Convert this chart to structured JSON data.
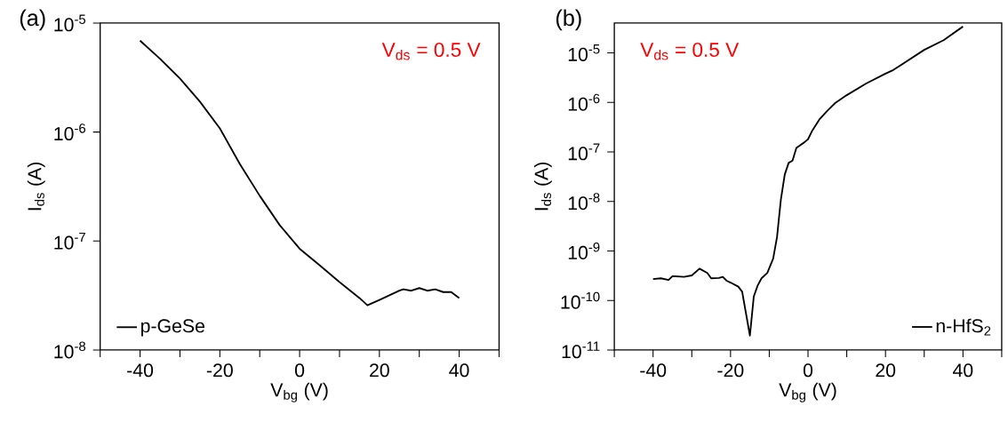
{
  "chart_data": [
    {
      "type": "line",
      "title": "(a)",
      "xlabel": "V$_{bg}$ (V)",
      "ylabel": "I$_{ds}$ (A)",
      "annotations": [
        "V$_{ds}$ = 0.5 V"
      ],
      "log": "y",
      "legend": "bottom left",
      "marker": "none",
      "line_style": "solid",
      "xlim": [
        -50,
        50
      ],
      "ylim": [
        1e-08,
        1e-05
      ],
      "xticks": [
        {
          "value": -50,
          "label": null
        },
        -40,
        {
          "value": -30,
          "label": null
        },
        -20,
        {
          "value": -10,
          "label": null
        },
        0,
        {
          "value": 10,
          "label": null
        },
        20,
        {
          "value": 30,
          "label": null
        },
        40,
        {
          "value": 50,
          "label": null
        }
      ],
      "yticks": [
        {
          "value": 1e-08,
          "label": "10$^{-8}$"
        },
        {
          "value": 1e-07,
          "label": "10$^{-7}$"
        },
        {
          "value": 1e-06,
          "label": "10$^{-6}$"
        },
        {
          "value": 1e-05,
          "label": "10$^{-5}$"
        }
      ],
      "series": [
        {
          "name": "p-GeSe",
          "color": "#000000",
          "x": [
            -40,
            -35,
            -30,
            -25,
            -20,
            -15,
            -10,
            -5,
            0,
            5,
            10,
            15,
            17,
            20,
            25,
            26,
            28,
            30,
            32,
            34,
            36,
            38,
            40
          ],
          "values": [
            6.9e-06,
            4.7e-06,
            3.1e-06,
            1.9e-06,
            1.08e-06,
            5.1e-07,
            2.6e-07,
            1.4e-07,
            8.5e-08,
            6e-08,
            4.2e-08,
            3e-08,
            2.57e-08,
            2.88e-08,
            3.5e-08,
            3.6e-08,
            3.5e-08,
            3.7e-08,
            3.5e-08,
            3.6e-08,
            3.4e-08,
            3.4e-08,
            3e-08
          ]
        }
      ]
    },
    {
      "type": "line",
      "title": "(b)",
      "xlabel": "V$_{bg}$ (V)",
      "ylabel": "I$_{ds}$ (A)",
      "annotations": [
        "V$_{ds}$ = 0.5 V"
      ],
      "log": "y",
      "legend": "bottom right",
      "marker": "none",
      "line_style": "solid",
      "xlim": [
        -50,
        50
      ],
      "ylim": [
        1e-11,
        4e-05
      ],
      "xticks": [
        {
          "value": -50,
          "label": null
        },
        -40,
        {
          "value": -30,
          "label": null
        },
        -20,
        {
          "value": -10,
          "label": null
        },
        0,
        {
          "value": 10,
          "label": null
        },
        20,
        {
          "value": 30,
          "label": null
        },
        40,
        {
          "value": 50,
          "label": null
        }
      ],
      "yticks": [
        {
          "value": 1e-11,
          "label": "10$^{-11}$"
        },
        {
          "value": 1e-10,
          "label": "10$^{-10}$"
        },
        {
          "value": 1e-09,
          "label": "10$^{-9}$"
        },
        {
          "value": 1e-08,
          "label": "10$^{-8}$"
        },
        {
          "value": 1e-07,
          "label": "10$^{-7}$"
        },
        {
          "value": 1e-06,
          "label": "10$^{-6}$"
        },
        {
          "value": 1e-05,
          "label": "10$^{-5}$"
        }
      ],
      "series": [
        {
          "name": "n-HfS$_{2}$",
          "color": "#000000",
          "x": [
            -40,
            -38,
            -36,
            -35,
            -32,
            -30,
            -28,
            -26,
            -25,
            -23,
            -22,
            -21,
            -20,
            -18,
            -17,
            -15,
            -14,
            -13,
            -12,
            -10.5,
            -9,
            -8,
            -7.5,
            -7,
            -6,
            -5,
            -4,
            -3,
            -1,
            0,
            1,
            3,
            5,
            7,
            10,
            15,
            20,
            22,
            30,
            35,
            40
          ],
          "values": [
            2.7e-10,
            2.8e-10,
            2.6e-10,
            3.1e-10,
            3e-10,
            3.2e-10,
            4.4e-10,
            3.6e-10,
            2.8e-10,
            2.85e-10,
            3e-10,
            2.5e-10,
            2.3e-10,
            1.9e-10,
            1.5e-10,
            1.95e-11,
            1.2e-10,
            2e-10,
            2.8e-10,
            3.6e-10,
            7e-10,
            1.9e-09,
            4.6e-09,
            1.1e-08,
            3.5e-08,
            6e-08,
            6.7e-08,
            1.2e-07,
            1.55e-07,
            1.8e-07,
            2.6e-07,
            4.6e-07,
            6.8e-07,
            9.7e-07,
            1.4e-06,
            2.4e-06,
            3.8e-06,
            4.5e-06,
            1.15e-05,
            1.8e-05,
            3.4e-05
          ]
        }
      ]
    }
  ]
}
